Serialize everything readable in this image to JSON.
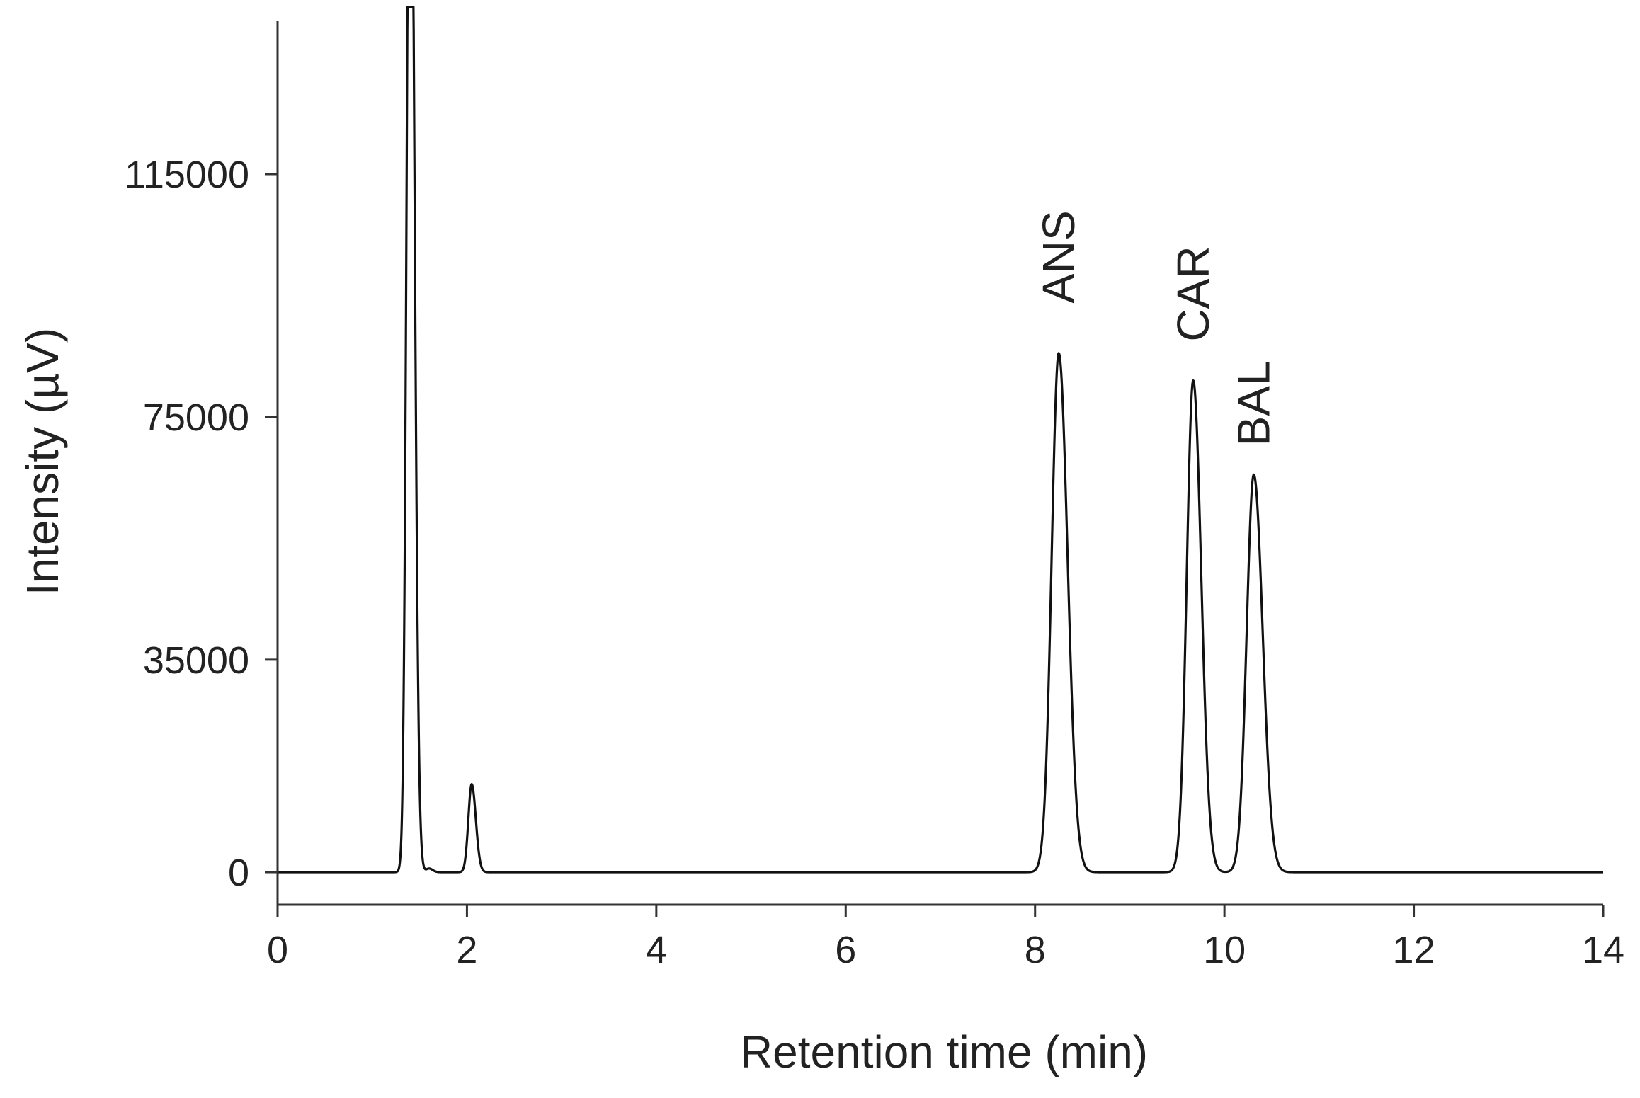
{
  "chart_data": {
    "type": "line",
    "title": "",
    "xlabel": "Retention time (min)",
    "ylabel": "Intensity (µV)",
    "xlim": [
      0,
      14
    ],
    "ylim": [
      -5000,
      140000
    ],
    "x_ticks": [
      0,
      2,
      4,
      6,
      8,
      10,
      12,
      14
    ],
    "y_ticks": [
      0,
      35000,
      75000,
      115000
    ],
    "x_tick_labels": [
      "0",
      "2",
      "4",
      "6",
      "8",
      "10",
      "12",
      "14"
    ],
    "y_tick_labels": [
      "0",
      "35000",
      "75000",
      "115000"
    ],
    "grid": false,
    "legend": "none",
    "line_color": "#111111",
    "baseline": 0,
    "peaks": [
      {
        "label": "",
        "rt": 1.4,
        "height": 200000,
        "sigma": 0.035
      },
      {
        "label": "",
        "rt": 1.6,
        "height": 600,
        "sigma": 0.03
      },
      {
        "label": "",
        "rt": 2.05,
        "height": 14500,
        "sigma": 0.035
      },
      {
        "label": "ANS",
        "rt": 8.25,
        "height": 85500,
        "sigma": 0.075
      },
      {
        "label": "CAR",
        "rt": 9.67,
        "height": 81000,
        "sigma": 0.068
      },
      {
        "label": "BAL",
        "rt": 10.31,
        "height": 65500,
        "sigma": 0.075
      }
    ],
    "annotations": [
      {
        "text": "ANS",
        "x": 8.25,
        "rotation": -90
      },
      {
        "text": "CAR",
        "x": 9.67,
        "rotation": -90
      },
      {
        "text": "BAL",
        "x": 10.31,
        "rotation": -90
      }
    ]
  }
}
